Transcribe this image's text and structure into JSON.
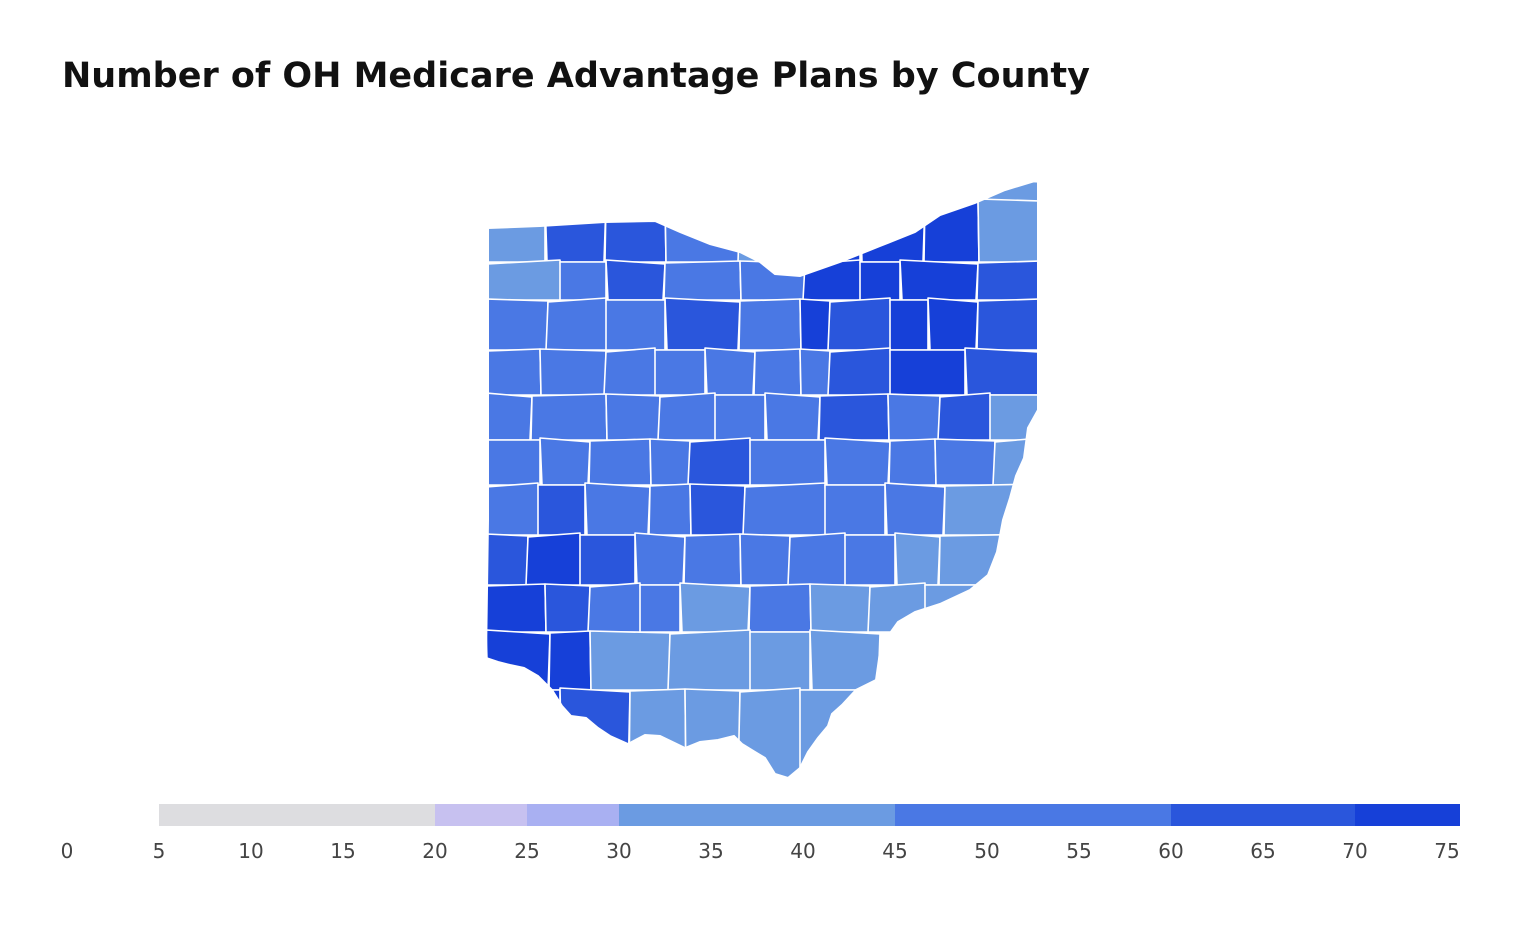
{
  "title": "Number of OH Medicare Advantage Plans by County",
  "legend": {
    "min": 0,
    "max": 75,
    "ticks": [
      "0",
      "5",
      "10",
      "15",
      "20",
      "25",
      "30",
      "35",
      "40",
      "45",
      "50",
      "55",
      "60",
      "65",
      "70",
      "75"
    ],
    "bins": [
      {
        "from": 0,
        "to": 5,
        "color": "#ffffff"
      },
      {
        "from": 5,
        "to": 20,
        "color": "#dddde0"
      },
      {
        "from": 20,
        "to": 25,
        "color": "#c7c1f0"
      },
      {
        "from": 25,
        "to": 30,
        "color": "#a9b0f2"
      },
      {
        "from": 30,
        "to": 45,
        "color": "#6b9be2"
      },
      {
        "from": 45,
        "to": 60,
        "color": "#4a78e4"
      },
      {
        "from": 60,
        "to": 70,
        "color": "#2a56dc"
      },
      {
        "from": 70,
        "to": 75,
        "color": "#1640d8"
      }
    ]
  },
  "colors": {
    "border": "#ffffff",
    "title": "#111111",
    "tick_text": "#444444"
  }
}
